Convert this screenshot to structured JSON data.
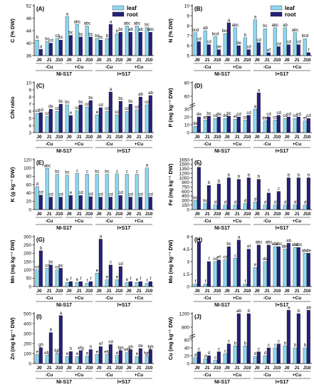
{
  "colors": {
    "leaf": "#8ed8f0",
    "root": "#26217a",
    "axis": "#000000"
  },
  "legend": {
    "leaf": "leaf",
    "root": "root"
  },
  "groups": {
    "treatments": [
      "J0",
      "J1",
      "J10",
      "J0",
      "J1",
      "J10",
      "J0",
      "J1",
      "J10",
      "J0",
      "J1",
      "J10"
    ],
    "cu_levels": [
      "-Cu",
      "+Cu",
      "-Cu",
      "+Cu"
    ],
    "inoculation": [
      "NI-S17",
      "I+S17"
    ]
  },
  "chart_data": [
    {
      "type": "bar",
      "panel": "(A)",
      "ylabel": "C (% DW)",
      "ylim": [
        36,
        52
      ],
      "yticks": [
        36,
        40,
        44,
        48,
        52
      ],
      "categories": [
        "J0",
        "J1",
        "J10",
        "J0",
        "J1",
        "J10",
        "J0",
        "J1",
        "J10",
        "J0",
        "J1",
        "J10"
      ],
      "series": [
        {
          "name": "leaf",
          "values": [
            41,
            40.5,
            41.5,
            48.5,
            46,
            45.5,
            41.5,
            41.5,
            43,
            45.5,
            45.5,
            45
          ]
        },
        {
          "name": "root",
          "values": [
            38,
            40,
            41,
            42.5,
            42,
            42,
            41,
            46,
            43.5,
            43.5,
            43.5,
            43.5
          ]
        }
      ],
      "labels": {
        "leaf": [
          "b",
          "bc",
          "cd",
          "a",
          "abc",
          "abc",
          "bc",
          "b",
          "b",
          "abc",
          "abc",
          "bc"
        ],
        "root": [
          "d",
          "cd",
          "bc",
          "bc",
          "bc",
          "bc",
          "bc",
          "a",
          "bc",
          "ab",
          "ab",
          "abc"
        ]
      }
    },
    {
      "type": "bar",
      "panel": "(B)",
      "ylabel": "N (% DW)",
      "ylim": [
        5,
        10
      ],
      "yticks": [
        5,
        6,
        7,
        8,
        9,
        10
      ],
      "categories": [
        "J0",
        "J1",
        "J10",
        "J0",
        "J1",
        "J10",
        "J0",
        "J1",
        "J10",
        "J0",
        "J1",
        "J10"
      ],
      "series": [
        {
          "name": "leaf",
          "values": [
            7.3,
            7.5,
            6.9,
            7.2,
            7.8,
            6.8,
            8.6,
            7.7,
            7.8,
            7.8,
            7.3,
            6.7
          ]
        },
        {
          "name": "root",
          "values": [
            6.4,
            6.1,
            5.6,
            8.3,
            6.0,
            5.6,
            6.3,
            5.3,
            5.9,
            6.1,
            6.1,
            5.3
          ]
        }
      ],
      "labels": {
        "leaf": [
          "bcd",
          "ab",
          "bcd",
          "bcd",
          "abc",
          "b",
          "a",
          "bc",
          "abc",
          "ab",
          "abc",
          "bcd"
        ],
        "root": [
          "cd",
          "cd",
          "de",
          "a",
          "de",
          "cd",
          "cd",
          "ef",
          "cd",
          "cd",
          "cd",
          "f"
        ]
      }
    },
    {
      "type": "bar",
      "panel": "(C)",
      "ylabel": "C/N ratio",
      "ylim": [
        3,
        10
      ],
      "yticks": [
        3,
        4,
        5,
        6,
        7,
        8,
        9,
        10
      ],
      "categories": [
        "J0",
        "J1",
        "J10",
        "J0",
        "J1",
        "J10",
        "J0",
        "J1",
        "J10",
        "J0",
        "J1",
        "J10"
      ],
      "series": [
        {
          "name": "leaf",
          "values": [
            5.7,
            5.3,
            6.0,
            6.9,
            6.1,
            6.6,
            5.5,
            6.0,
            5.5,
            6.0,
            6.2,
            6.9
          ]
        },
        {
          "name": "root",
          "values": [
            5.8,
            6.3,
            7.0,
            5.4,
            6.9,
            7.5,
            6.5,
            8.7,
            7.4,
            7.0,
            8.0,
            8.2
          ]
        }
      ],
      "labels": {
        "leaf": [
          "cd",
          "cd",
          "cd",
          "bc",
          "cd",
          "cd",
          "e",
          "cd",
          "cd",
          "cd",
          "cd",
          "cd"
        ],
        "root": [
          "cd",
          "de",
          "bc",
          "e",
          "bc",
          "bc",
          "cd",
          "a",
          "bc",
          "bc",
          "ab",
          "ab"
        ]
      }
    },
    {
      "type": "bar",
      "panel": "(D)",
      "ylabel": "P (mg kg⁻¹ DW)",
      "ylim": [
        0,
        80
      ],
      "yticks": [
        0,
        10,
        20,
        30,
        60,
        80
      ],
      "axis_break": [
        35,
        50
      ],
      "categories": [
        "J0",
        "J1",
        "J10",
        "J0",
        "J1",
        "J10",
        "J0",
        "J1",
        "J10",
        "J0",
        "J1",
        "J10"
      ],
      "series": [
        {
          "name": "leaf",
          "values": [
            8,
            16,
            18,
            18,
            17,
            16,
            30,
            15,
            16,
            18,
            18,
            15
          ]
        },
        {
          "name": "root",
          "values": [
            20,
            21,
            20,
            21,
            20,
            22,
            65,
            20,
            22,
            20,
            20,
            18
          ]
        }
      ],
      "labels": {
        "leaf": [
          "de",
          "ab",
          "cd",
          "de",
          "ef",
          "cd",
          "a",
          "def",
          "cd",
          "cd",
          "cd",
          "ef"
        ],
        "root": [
          "de",
          "bc",
          "de",
          "bc",
          "cd",
          "cd",
          "a",
          "cd",
          "cd",
          "cd",
          "cd",
          "cd"
        ]
      }
    },
    {
      "type": "bar",
      "panel": "(E)",
      "ylabel": "K (g kg⁻¹ DW)",
      "ylim": [
        0,
        120
      ],
      "yticks": [
        0,
        20,
        40,
        60,
        80,
        100,
        120
      ],
      "categories": [
        "J0",
        "J1",
        "J10",
        "J0",
        "J1",
        "J10",
        "J0",
        "J1",
        "J10",
        "J0",
        "J1",
        "J10"
      ],
      "series": [
        {
          "name": "leaf",
          "values": [
            55,
            99,
            85,
            83,
            87,
            85,
            85,
            85,
            86,
            85,
            85,
            100
          ]
        },
        {
          "name": "root",
          "values": [
            35,
            30,
            30,
            34,
            34,
            31,
            30,
            30,
            34,
            30,
            30,
            30
          ]
        }
      ],
      "labels": {
        "leaf": [
          "d",
          "abc",
          "bc",
          "bc",
          "c",
          "c",
          "bc",
          "bc",
          "c",
          "c",
          "c",
          "a"
        ],
        "root": [
          "cd",
          "cd",
          "cd",
          "e",
          "cd",
          "cd",
          "cd",
          "cd",
          "cd",
          "cd",
          "cd",
          "cd"
        ]
      }
    },
    {
      "type": "bar",
      "panel": "(F)",
      "ylabel": "Fe (mg kg⁻¹ DW)",
      "ylim": [
        0,
        1650
      ],
      "yticks": [
        0,
        150,
        300,
        450,
        600,
        750,
        900,
        1050,
        1200,
        1350,
        1500,
        1650
      ],
      "categories": [
        "J0",
        "J1",
        "J10",
        "J0",
        "J1",
        "J10",
        "J0",
        "J1",
        "J10",
        "J0",
        "J1",
        "J10"
      ],
      "series": [
        {
          "name": "leaf",
          "values": [
            300,
            200,
            150,
            150,
            150,
            200,
            250,
            150,
            150,
            150,
            150,
            150
          ]
        },
        {
          "name": "root",
          "values": [
            1400,
            800,
            850,
            1050,
            1000,
            1050,
            1000,
            550,
            600,
            1050,
            1050,
            1050
          ]
        }
      ],
      "labels": {
        "leaf": [
          "bc",
          "bc",
          "d",
          "d",
          "d",
          "d",
          "d",
          "d",
          "d",
          "d",
          "d",
          "d"
        ],
        "root": [
          "a",
          "b",
          "b",
          "b",
          "b",
          "b",
          "b",
          "c",
          "c",
          "b",
          "b",
          "b"
        ]
      }
    },
    {
      "type": "bar",
      "panel": "(G)",
      "ylabel": "Mn (mg kg⁻¹ DW)",
      "ylim": [
        0,
        300
      ],
      "yticks": [
        0,
        50,
        100,
        150,
        200,
        250,
        300
      ],
      "categories": [
        "J0",
        "J1",
        "J10",
        "J0",
        "J1",
        "J10",
        "J0",
        "J1",
        "J10",
        "J0",
        "J1",
        "J10"
      ],
      "series": [
        {
          "name": "leaf",
          "values": [
            100,
            110,
            100,
            25,
            25,
            20,
            80,
            40,
            40,
            25,
            25,
            20
          ]
        },
        {
          "name": "root",
          "values": [
            215,
            130,
            110,
            30,
            30,
            30,
            285,
            130,
            120,
            30,
            30,
            30
          ]
        }
      ],
      "labels": {
        "leaf": [
          "cd",
          "cd",
          "cd",
          "e",
          "e",
          "f",
          "e",
          "e",
          "e",
          "e",
          "e",
          "f"
        ],
        "root": [
          "b",
          "bc",
          "bc",
          "f",
          "f",
          "f",
          "a",
          "c",
          "cd",
          "f",
          "f",
          "f"
        ]
      }
    },
    {
      "type": "bar",
      "panel": "(H)",
      "ylabel": "Mo (mg kg⁻¹ DW)",
      "ylim": [
        0,
        6
      ],
      "yticks": [
        0,
        1.5,
        3.0,
        4.5,
        6.0
      ],
      "categories": [
        "J0",
        "J1",
        "J10",
        "J0",
        "J1",
        "J10",
        "J0",
        "J1",
        "J10",
        "J0",
        "J1",
        "J10"
      ],
      "series": [
        {
          "name": "leaf",
          "values": [
            0.3,
            0.3,
            3.0,
            3.2,
            3.4,
            0.3,
            2.3,
            3.0,
            4.8,
            4.5,
            4.7,
            4.0
          ]
        },
        {
          "name": "root",
          "values": [
            5.4,
            3.0,
            3.2,
            4.8,
            5.6,
            4.5,
            5.0,
            5.0,
            4.8,
            5.2,
            4.7,
            4.0
          ]
        }
      ],
      "labels": {
        "leaf": [
          "f",
          "f",
          "cd",
          "cd",
          "c",
          "f",
          "e",
          "de",
          "abc",
          "abc",
          "abc",
          "abc"
        ],
        "root": [
          "a",
          "f",
          "ef",
          "bc",
          "a",
          "ef",
          "abc",
          "abc",
          "abc",
          "ab",
          "abc",
          "de"
        ]
      }
    },
    {
      "type": "bar",
      "panel": "(I)",
      "ylabel": "Zn (mg kg⁻¹ DW)",
      "ylim": [
        0,
        500
      ],
      "yticks": [
        0,
        100,
        200,
        300,
        400,
        500
      ],
      "categories": [
        "J0",
        "J1",
        "J10",
        "J0",
        "J1",
        "J10",
        "J0",
        "J1",
        "J10",
        "J0",
        "J1",
        "J10"
      ],
      "series": [
        {
          "name": "leaf",
          "values": [
            90,
            80,
            100,
            70,
            70,
            75,
            90,
            90,
            80,
            110,
            70,
            75
          ]
        },
        {
          "name": "root",
          "values": [
            160,
            310,
            480,
            120,
            130,
            140,
            170,
            190,
            130,
            140,
            150,
            140
          ]
        }
      ],
      "labels": {
        "leaf": [
          "e",
          "efg",
          "fgh",
          "e",
          "e",
          "e",
          "e",
          "efg",
          "e",
          "efg",
          "e",
          "fgh"
        ],
        "root": [
          "gh",
          "b",
          "a",
          "h",
          "efg",
          "h",
          "ef",
          "cd",
          "fgh",
          "gh",
          "de",
          "fgh"
        ]
      }
    },
    {
      "type": "bar",
      "panel": "(J)",
      "ylabel": "Cu (mg kg⁻¹ DW)",
      "ylim": [
        0,
        1200
      ],
      "yticks": [
        0,
        20,
        40,
        60,
        800,
        1200
      ],
      "axis_break": [
        70,
        600
      ],
      "categories": [
        "J0",
        "J1",
        "J10",
        "J0",
        "J1",
        "J10",
        "J0",
        "J1",
        "J10",
        "J0",
        "J1",
        "J10"
      ],
      "series": [
        {
          "name": "leaf",
          "values": [
            15,
            12,
            8,
            25,
            45,
            45,
            18,
            20,
            40,
            45,
            40,
            40
          ]
        },
        {
          "name": "root",
          "values": [
            30,
            20,
            30,
            50,
            1200,
            1200,
            30,
            40,
            50,
            1300,
            1200,
            1300
          ]
        }
      ],
      "labels": {
        "leaf": [
          "d",
          "d",
          "c",
          "c",
          "b",
          "b",
          "d",
          "d",
          "c",
          "b",
          "b",
          "b"
        ],
        "root": [
          "c",
          "d",
          "c",
          "c",
          "ab",
          "b",
          "c",
          "c",
          "c",
          "a",
          "b",
          "ab"
        ]
      }
    }
  ]
}
